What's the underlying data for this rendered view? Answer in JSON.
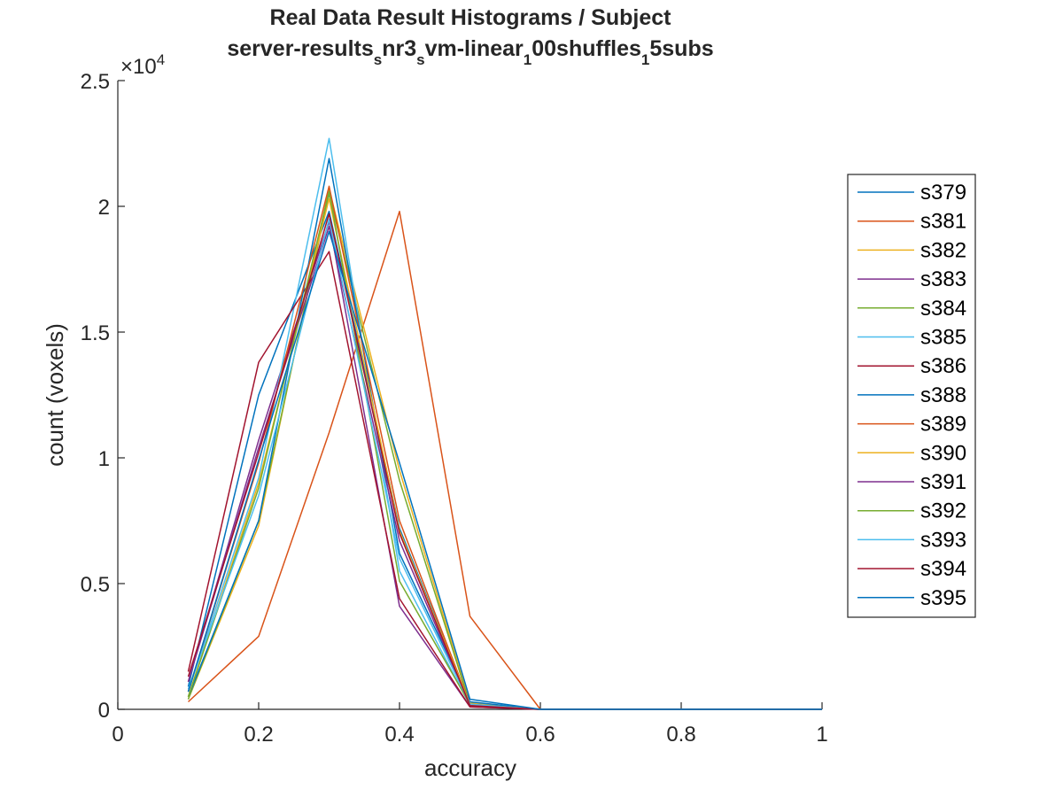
{
  "chart_data": {
    "type": "line",
    "title": "Real Data Result Histograms / Subject",
    "subtitle_parts": [
      {
        "text": "server-results",
        "sub": false
      },
      {
        "text": "s",
        "sub": true
      },
      {
        "text": "nr3",
        "sub": false
      },
      {
        "text": "s",
        "sub": true
      },
      {
        "text": "vm-linear",
        "sub": false
      },
      {
        "text": "1",
        "sub": true
      },
      {
        "text": "00shuffles",
        "sub": false
      },
      {
        "text": "1",
        "sub": true
      },
      {
        "text": "5subs",
        "sub": false
      }
    ],
    "xlabel": "accuracy",
    "ylabel": "count (voxels)",
    "xlim": [
      0,
      1
    ],
    "ylim": [
      0,
      25000
    ],
    "xticks": [
      0,
      0.2,
      0.4,
      0.6,
      0.8,
      1
    ],
    "xtick_labels": [
      "0",
      "0.2",
      "0.4",
      "0.6",
      "0.8",
      "1"
    ],
    "yticks": [
      0,
      5000,
      10000,
      15000,
      20000,
      25000
    ],
    "ytick_labels": [
      "0",
      "0.5",
      "1",
      "1.5",
      "2",
      "2.5"
    ],
    "y_exponent_base": "×10",
    "y_exponent_power": "4",
    "grid": false,
    "legend_position": "right",
    "x": [
      0.1,
      0.2,
      0.3,
      0.4,
      0.5,
      0.6,
      0.7,
      0.8,
      0.9,
      1.0
    ],
    "series": [
      {
        "name": "s379",
        "color": "#0072BD",
        "values": [
          900,
          12500,
          19800,
          7200,
          200,
          0,
          0,
          0,
          0,
          0
        ]
      },
      {
        "name": "s381",
        "color": "#D95319",
        "values": [
          300,
          2900,
          11000,
          19800,
          3700,
          0,
          0,
          0,
          0,
          0
        ]
      },
      {
        "name": "s382",
        "color": "#EDB120",
        "values": [
          400,
          7300,
          20700,
          9500,
          250,
          0,
          0,
          0,
          0,
          0
        ]
      },
      {
        "name": "s383",
        "color": "#7E2F8E",
        "values": [
          1100,
          10700,
          19400,
          4100,
          100,
          0,
          0,
          0,
          0,
          0
        ]
      },
      {
        "name": "s384",
        "color": "#77AC30",
        "values": [
          400,
          7500,
          20500,
          9100,
          200,
          0,
          0,
          0,
          0,
          0
        ]
      },
      {
        "name": "s385",
        "color": "#4DBEEE",
        "values": [
          700,
          9200,
          22700,
          5500,
          150,
          0,
          0,
          0,
          0,
          0
        ]
      },
      {
        "name": "s386",
        "color": "#A2142F",
        "values": [
          1500,
          13800,
          18200,
          4400,
          100,
          0,
          0,
          0,
          0,
          0
        ]
      },
      {
        "name": "s388",
        "color": "#0072BD",
        "values": [
          500,
          7500,
          21900,
          6200,
          300,
          0,
          0,
          0,
          0,
          0
        ]
      },
      {
        "name": "s389",
        "color": "#D95319",
        "values": [
          700,
          9800,
          20800,
          7500,
          200,
          0,
          0,
          0,
          0,
          0
        ]
      },
      {
        "name": "s390",
        "color": "#EDB120",
        "values": [
          500,
          9000,
          20300,
          7100,
          200,
          0,
          0,
          0,
          0,
          0
        ]
      },
      {
        "name": "s391",
        "color": "#7E2F8E",
        "values": [
          1100,
          10400,
          19200,
          6700,
          150,
          0,
          0,
          0,
          0,
          0
        ]
      },
      {
        "name": "s392",
        "color": "#77AC30",
        "values": [
          500,
          8800,
          20600,
          5100,
          200,
          0,
          0,
          0,
          0,
          0
        ]
      },
      {
        "name": "s393",
        "color": "#4DBEEE",
        "values": [
          800,
          8500,
          19500,
          6000,
          200,
          0,
          0,
          0,
          0,
          0
        ]
      },
      {
        "name": "s394",
        "color": "#A2142F",
        "values": [
          1300,
          10200,
          19700,
          7000,
          150,
          0,
          0,
          0,
          0,
          0
        ]
      },
      {
        "name": "s395",
        "color": "#0072BD",
        "values": [
          700,
          9900,
          19000,
          9800,
          400,
          0,
          0,
          0,
          0,
          0
        ]
      }
    ]
  }
}
